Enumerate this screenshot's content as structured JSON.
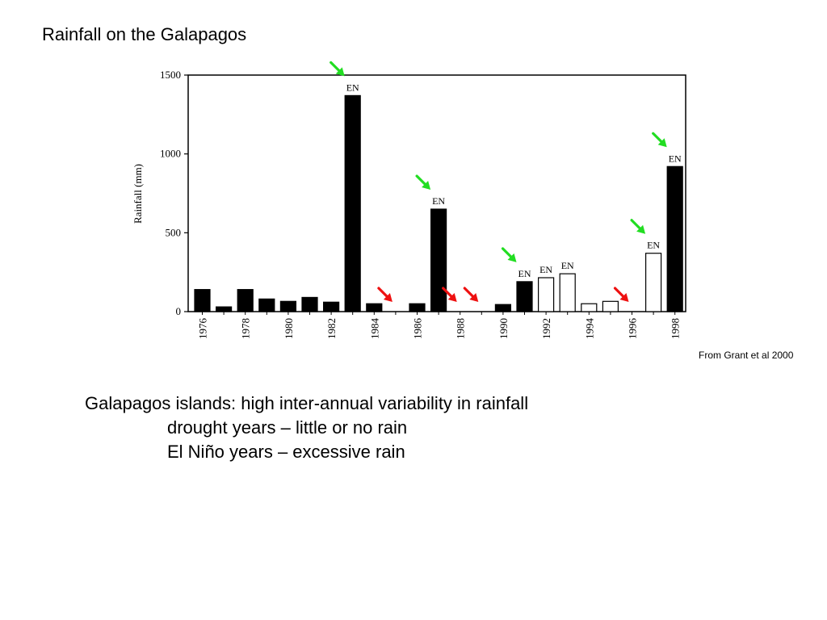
{
  "slide": {
    "title": "Rainfall on the Galapagos",
    "source": "From Grant et al 2000",
    "body": [
      "Galapagos islands: high inter-annual variability in rainfall",
      "drought years – little or no rain",
      "El Niño years – excessive rain"
    ]
  },
  "chart_data": {
    "type": "bar",
    "ylabel": "Rainfall (mm)",
    "ylim": [
      0,
      1500
    ],
    "yticks": [
      0,
      500,
      1000,
      1500
    ],
    "xtick_labels": [
      "1976",
      "1978",
      "1980",
      "1982",
      "1984",
      "1986",
      "1988",
      "1990",
      "1992",
      "1994",
      "1996",
      "1998"
    ],
    "annotation_label": "EN",
    "categories": [
      "1976",
      "1977",
      "1978",
      "1979",
      "1980",
      "1981",
      "1982",
      "1983",
      "1984",
      "1985",
      "1986",
      "1987",
      "1988",
      "1989",
      "1990",
      "1991",
      "1992",
      "1993",
      "1994",
      "1995",
      "1996",
      "1997",
      "1998"
    ],
    "values": [
      140,
      30,
      140,
      80,
      65,
      90,
      60,
      1370,
      50,
      0,
      50,
      650,
      0,
      0,
      45,
      190,
      215,
      240,
      50,
      65,
      0,
      370,
      920
    ],
    "fill": [
      "black",
      "black",
      "black",
      "black",
      "black",
      "black",
      "black",
      "black",
      "black",
      "none",
      "black",
      "black",
      "none",
      "none",
      "black",
      "black",
      "white",
      "white",
      "white",
      "white",
      "none",
      "white",
      "black"
    ],
    "el_nino_years": [
      "1983",
      "1987",
      "1991",
      "1992",
      "1993",
      "1997",
      "1998"
    ],
    "green_arrow_years": [
      "1983",
      "1987",
      "1991",
      "1997",
      "1998"
    ],
    "red_arrow_years": [
      "1985",
      "1988",
      "1989",
      "1996"
    ],
    "arrow_colors": {
      "el_nino": "#22dd22",
      "drought": "#ee1111"
    },
    "grid": false
  }
}
